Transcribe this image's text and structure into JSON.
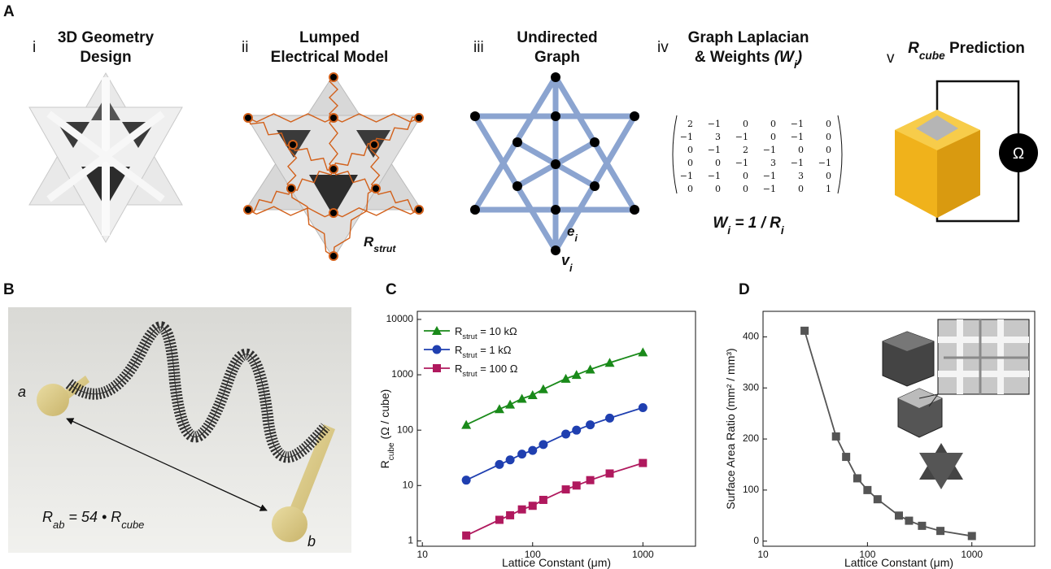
{
  "panel_labels": [
    "A",
    "B",
    "C",
    "D"
  ],
  "panel_a": {
    "steps": [
      {
        "numeral": "i",
        "title": [
          "3D Geometry",
          "Design"
        ]
      },
      {
        "numeral": "ii",
        "title": [
          "Lumped",
          "Electrical Model"
        ]
      },
      {
        "numeral": "iii",
        "title": [
          "Undirected",
          "Graph"
        ]
      },
      {
        "numeral": "iv",
        "title": [
          "Graph Laplacian",
          [
            {
              "text": "& Weights "
            },
            {
              "text": "(W",
              "i": true
            },
            {
              "text": "i",
              "i": true,
              "sub": true
            },
            {
              "text": ")",
              "i": true
            }
          ]
        ]
      },
      {
        "numeral": "v",
        "title": [
          [
            {
              "text": "R",
              "i": true
            },
            {
              "text": "cube",
              "i": true,
              "sub": true
            },
            {
              "text": " Prediction"
            }
          ]
        ]
      }
    ],
    "strut_label": [
      {
        "text": "R"
      },
      {
        "text": "strut",
        "sub": true
      }
    ],
    "edge_label": [
      {
        "text": "e"
      },
      {
        "text": "i",
        "sub": true
      }
    ],
    "vertex_label": [
      {
        "text": "v"
      },
      {
        "text": "i",
        "sub": true
      }
    ],
    "matrix": [
      [
        "2",
        "−1",
        "0",
        "0",
        "−1",
        "0"
      ],
      [
        "−1",
        "3",
        "−1",
        "0",
        "−1",
        "0"
      ],
      [
        "0",
        "−1",
        "2",
        "−1",
        "0",
        "0"
      ],
      [
        "0",
        "0",
        "−1",
        "3",
        "−1",
        "−1"
      ],
      [
        "−1",
        "−1",
        "0",
        "−1",
        "3",
        "0"
      ],
      [
        "0",
        "0",
        "0",
        "−1",
        "0",
        "1"
      ]
    ],
    "weight_eq": [
      {
        "text": "W"
      },
      {
        "text": "i",
        "sub": true
      },
      {
        "text": " = 1 / R"
      },
      {
        "text": "i",
        "sub": true
      }
    ],
    "ohm": "Ω"
  },
  "panel_b": {
    "pad_a": "a",
    "pad_b": "b",
    "equation": [
      {
        "text": "R"
      },
      {
        "text": "ab",
        "sub": true
      },
      {
        "text": " = 54 • R"
      },
      {
        "text": "cube",
        "sub": true
      }
    ]
  },
  "chart_data": [
    {
      "type": "line",
      "xscale": "log",
      "yscale": "log",
      "x_label": "Lattice Constant (μm)",
      "y_label": [
        {
          "text": "R"
        },
        {
          "text": "cube",
          "sub": true
        },
        {
          "text": " (Ω / cube)"
        }
      ],
      "x": [
        25,
        50,
        62.5,
        80,
        100,
        125,
        200,
        250,
        333,
        500,
        1000
      ],
      "series": [
        {
          "name": [
            {
              "text": "R"
            },
            {
              "text": "strut",
              "sub": true
            },
            {
              "text": " = 10 kΩ"
            }
          ],
          "color": "#1a8a1a",
          "marker": "triangle",
          "values": [
            125,
            240,
            290,
            370,
            430,
            550,
            850,
            1000,
            1250,
            1650,
            2550
          ]
        },
        {
          "name": [
            {
              "text": "R"
            },
            {
              "text": "strut",
              "sub": true
            },
            {
              "text": " = 1   kΩ"
            }
          ],
          "color": "#1f3fb0",
          "marker": "circle",
          "values": [
            12.5,
            24,
            29,
            37,
            43,
            55,
            85,
            100,
            125,
            165,
            255
          ]
        },
        {
          "name": [
            {
              "text": "R"
            },
            {
              "text": "strut",
              "sub": true
            },
            {
              "text": " = 100 Ω"
            }
          ],
          "color": "#b0195e",
          "marker": "square",
          "values": [
            1.25,
            2.4,
            2.9,
            3.7,
            4.3,
            5.5,
            8.5,
            10,
            12.5,
            16.5,
            25.5
          ]
        }
      ],
      "xlim": [
        9,
        3000
      ],
      "xticks": [
        10,
        100,
        1000
      ],
      "ylim": [
        0.8,
        14000
      ],
      "yticks": [
        1,
        10,
        100,
        1000,
        10000
      ],
      "legend": "upper-left"
    },
    {
      "type": "line",
      "xscale": "log",
      "yscale": "linear",
      "x_label": "Lattice Constant (μm)",
      "y_label": "Surface Area Ratio (mm² / mm³)",
      "x": [
        25,
        50,
        62.5,
        80,
        100,
        125,
        200,
        250,
        333,
        500,
        1000
      ],
      "values": [
        412,
        205,
        165,
        123,
        100,
        82,
        50,
        40,
        30,
        20,
        10
      ],
      "color": "#555555",
      "marker": "square",
      "xlim": [
        10,
        4000
      ],
      "xticks": [
        10,
        100,
        1000
      ],
      "ylim": [
        -10,
        450
      ],
      "yticks": [
        0,
        100,
        200,
        300,
        400
      ]
    }
  ]
}
